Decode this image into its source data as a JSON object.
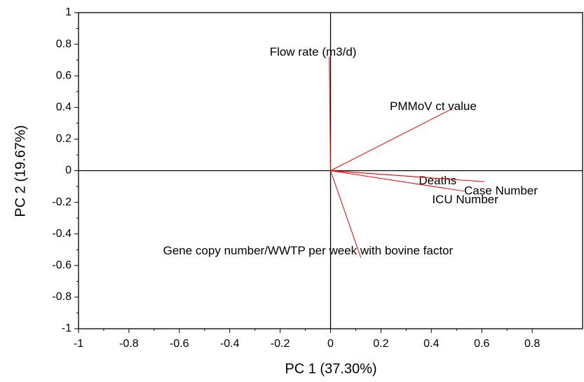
{
  "chart_data": {
    "type": "biplot",
    "xlabel": "PC 1 (37.30%)",
    "ylabel": "PC 2 (19.67%)",
    "xlim": [
      -1,
      1
    ],
    "ylim": [
      -1,
      1
    ],
    "xticks": [
      -1,
      -0.8,
      -0.6,
      -0.4,
      -0.2,
      0,
      0.2,
      0.4,
      0.6,
      0.8
    ],
    "yticks": [
      -1,
      -0.8,
      -0.6,
      -0.4,
      -0.2,
      0,
      0.2,
      0.4,
      0.6,
      0.8,
      1
    ],
    "color": "#ff0000",
    "categories": [
      "Flow rate (m3/d)",
      "PMMoV ct value",
      "Deaths",
      "Case Number",
      "ICU Number",
      "Gene copy number/WWTP per week with bovine factor"
    ],
    "x": [
      -0.005,
      0.48,
      0.35,
      0.53,
      0.61,
      0.12
    ],
    "values": [
      0.72,
      0.39,
      -0.04,
      -0.13,
      -0.07,
      -0.55
    ]
  }
}
